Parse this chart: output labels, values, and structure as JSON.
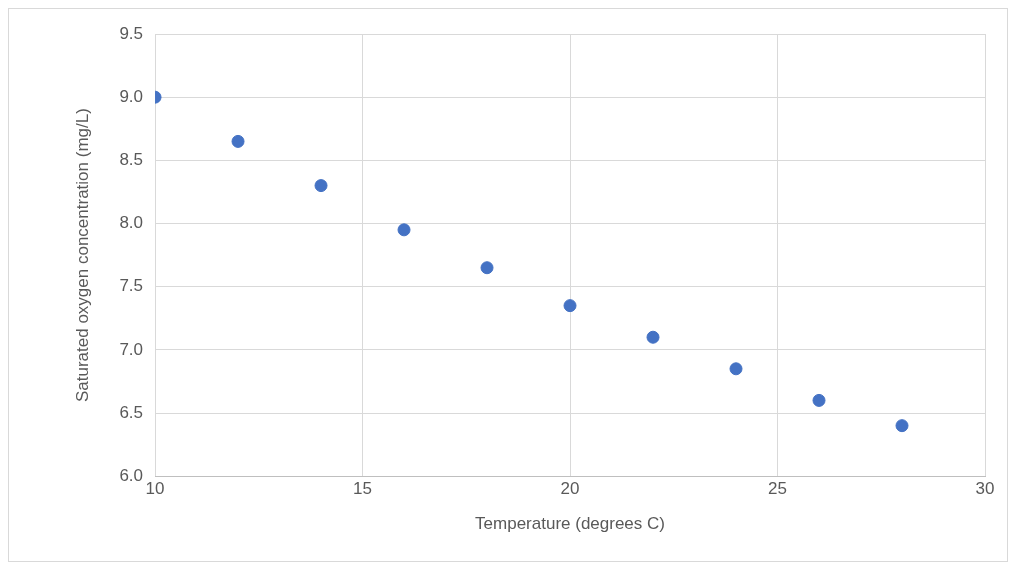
{
  "chart_data": {
    "type": "scatter",
    "xlabel": "Temperature (degrees C)",
    "ylabel": "Saturated oxygen concentration (mg/L)",
    "x": [
      10,
      12,
      14,
      16,
      18,
      20,
      22,
      24,
      26,
      28
    ],
    "series": [
      {
        "color": "#4472c4",
        "values": [
          9.0,
          8.65,
          8.3,
          7.95,
          7.65,
          7.35,
          7.1,
          6.85,
          6.6,
          6.4
        ]
      }
    ],
    "xlim": [
      10,
      30
    ],
    "xticks": [
      10,
      15,
      20,
      25,
      30
    ],
    "ylim": [
      6.0,
      9.5
    ],
    "yticks": [
      {
        "value": 6,
        "label": "6.0"
      },
      6.5,
      {
        "value": 7,
        "label": "7.0"
      },
      7.5,
      {
        "value": 8,
        "label": "8.0"
      },
      8.5,
      {
        "value": 9,
        "label": "9.0"
      },
      9.5
    ],
    "grid": true,
    "legend": false,
    "marker": "circle"
  }
}
